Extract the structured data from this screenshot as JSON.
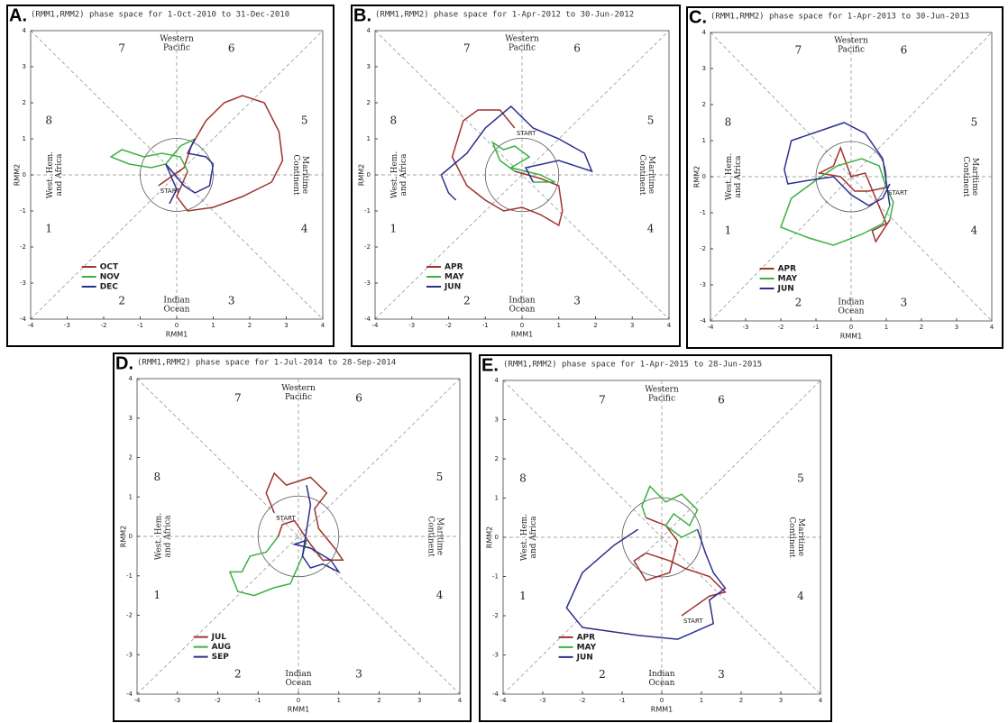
{
  "chart_data": [
    {
      "type": "line",
      "panel_label": "A.",
      "title": "(RMM1,RMM2) phase space for  1-Oct-2010 to 31-Dec-2010",
      "xlabel": "RMM1",
      "ylabel": "RMM2",
      "xlim": [
        -4,
        4
      ],
      "ylim": [
        -4,
        4
      ],
      "xticks": [
        -4,
        -3,
        -2,
        -1,
        0,
        1,
        2,
        3,
        4
      ],
      "yticks": [
        -4,
        -3,
        -2,
        -1,
        0,
        1,
        2,
        3,
        4
      ],
      "phase_labels": [
        "1",
        "2",
        "3",
        "4",
        "5",
        "6",
        "7",
        "8"
      ],
      "regions": {
        "top": [
          "Western",
          "Pacific"
        ],
        "bottom": [
          "Indian",
          "Ocean"
        ],
        "left": [
          "West. Hem.",
          "and Africa"
        ],
        "right": [
          "Maritime",
          "Continent"
        ]
      },
      "start_label": "START",
      "series": [
        {
          "name": "OCT",
          "color": "#a0322d",
          "x": [
            -0.5,
            0.2,
            0.4,
            0.8,
            1.3,
            1.8,
            2.4,
            2.8,
            2.9,
            2.6,
            1.8,
            1.0,
            0.3,
            0.0,
            0.3
          ],
          "y": [
            -0.3,
            0.2,
            0.8,
            1.5,
            2.0,
            2.2,
            2.0,
            1.2,
            0.4,
            -0.2,
            -0.6,
            -0.9,
            -1.0,
            -0.6,
            0.1
          ]
        },
        {
          "name": "NOV",
          "color": "#3cb043",
          "x": [
            0.3,
            0.1,
            -0.4,
            -0.9,
            -1.5,
            -1.8,
            -1.3,
            -0.7,
            -0.3,
            0.1,
            0.5
          ],
          "y": [
            0.1,
            0.5,
            0.6,
            0.5,
            0.7,
            0.5,
            0.3,
            0.2,
            0.3,
            0.8,
            1.0
          ]
        },
        {
          "name": "DEC",
          "color": "#2b2f8f",
          "x": [
            0.5,
            0.3,
            0.8,
            1.0,
            0.9,
            0.5,
            0.2,
            -0.3,
            0.0,
            -0.2
          ],
          "y": [
            1.0,
            0.6,
            0.5,
            0.3,
            -0.3,
            -0.5,
            -0.3,
            0.3,
            -0.4,
            -0.8
          ]
        }
      ]
    },
    {
      "type": "line",
      "panel_label": "B.",
      "title": "(RMM1,RMM2) phase space for  1-Apr-2012 to 30-Jun-2012",
      "xlabel": "RMM1",
      "ylabel": "RMM2",
      "xlim": [
        -4,
        4
      ],
      "ylim": [
        -4,
        4
      ],
      "xticks": [
        -4,
        -3,
        -2,
        -1,
        0,
        1,
        2,
        3,
        4
      ],
      "yticks": [
        -4,
        -3,
        -2,
        -1,
        0,
        1,
        2,
        3,
        4
      ],
      "phase_labels": [
        "1",
        "2",
        "3",
        "4",
        "5",
        "6",
        "7",
        "8"
      ],
      "regions": {
        "top": [
          "Western",
          "Pacific"
        ],
        "bottom": [
          "Indian",
          "Ocean"
        ],
        "left": [
          "West. Hem.",
          "and Africa"
        ],
        "right": [
          "Maritime",
          "Continent"
        ]
      },
      "start_label": "START",
      "series": [
        {
          "name": "APR",
          "color": "#a0322d",
          "x": [
            -0.2,
            -0.6,
            -1.2,
            -1.6,
            -1.9,
            -1.5,
            -1.0,
            -0.5,
            0.0,
            0.5,
            1.0,
            1.1,
            1.0,
            0.5,
            -0.2
          ],
          "y": [
            1.3,
            1.8,
            1.8,
            1.5,
            0.5,
            -0.3,
            -0.7,
            -1.0,
            -0.9,
            -1.1,
            -1.4,
            -1.0,
            -0.3,
            -0.1,
            0.1
          ]
        },
        {
          "name": "MAY",
          "color": "#3cb043",
          "x": [
            -0.2,
            -0.6,
            -0.8,
            -0.5,
            -0.2,
            0.2,
            -0.3,
            0.5,
            0.9,
            0.3
          ],
          "y": [
            0.1,
            0.4,
            0.9,
            0.7,
            0.8,
            0.5,
            0.2,
            0.0,
            -0.2,
            -0.2
          ]
        },
        {
          "name": "JUN",
          "color": "#2b2f8f",
          "x": [
            0.3,
            0.1,
            1.0,
            1.9,
            1.7,
            1.0,
            0.3,
            -0.3,
            -1.0,
            -1.5,
            -2.2,
            -2.0,
            -1.8
          ],
          "y": [
            -0.2,
            0.2,
            0.4,
            0.1,
            0.6,
            1.0,
            1.3,
            1.9,
            1.3,
            0.6,
            0.0,
            -0.5,
            -0.7
          ]
        }
      ]
    },
    {
      "type": "line",
      "panel_label": "C.",
      "title": "(RMM1,RMM2) phase space for  1-Apr-2013 to 30-Jun-2013",
      "xlabel": "RMM1",
      "ylabel": "RMM2",
      "xlim": [
        -4,
        4
      ],
      "ylim": [
        -4,
        4
      ],
      "xticks": [
        -4,
        -3,
        -2,
        -1,
        0,
        1,
        2,
        3,
        4
      ],
      "yticks": [
        -4,
        -3,
        -2,
        -1,
        0,
        1,
        2,
        3,
        4
      ],
      "phase_labels": [
        "1",
        "2",
        "3",
        "4",
        "5",
        "6",
        "7",
        "8"
      ],
      "regions": {
        "top": [
          "Western",
          "Pacific"
        ],
        "bottom": [
          "Indian",
          "Ocean"
        ],
        "left": [
          "West. Hem.",
          "and Africa"
        ],
        "right": [
          "Maritime",
          "Continent"
        ]
      },
      "start_label": "START",
      "series": [
        {
          "name": "APR",
          "color": "#a0322d",
          "x": [
            1.0,
            0.5,
            0.1,
            -0.3,
            -0.9,
            -0.5,
            -0.3,
            0.0,
            0.4,
            0.7,
            1.0,
            0.6,
            0.7,
            1.1
          ],
          "y": [
            -0.3,
            -0.4,
            -0.4,
            0.0,
            0.1,
            0.3,
            0.8,
            0.0,
            0.1,
            -0.6,
            -1.3,
            -1.5,
            -1.8,
            -1.2
          ]
        },
        {
          "name": "MAY",
          "color": "#3cb043",
          "x": [
            1.1,
            1.2,
            1.0,
            0.8,
            0.3,
            -0.4,
            -1.0,
            -1.7,
            -2.0,
            -1.2,
            -0.5,
            0.3,
            0.9,
            1.1
          ],
          "y": [
            -1.2,
            -0.7,
            -0.3,
            0.3,
            0.5,
            0.3,
            -0.1,
            -0.6,
            -1.4,
            -1.7,
            -1.9,
            -1.6,
            -1.3,
            -0.8
          ]
        },
        {
          "name": "JUN",
          "color": "#2b2f8f",
          "x": [
            1.1,
            0.9,
            0.4,
            -0.2,
            -0.8,
            -1.7,
            -1.9,
            -1.8,
            -1.2,
            -0.5,
            0.0,
            0.5,
            0.9,
            1.1
          ],
          "y": [
            -0.8,
            0.5,
            1.2,
            1.5,
            1.3,
            1.0,
            0.2,
            -0.2,
            -0.1,
            0.0,
            -0.5,
            -0.8,
            -0.6,
            -0.2
          ]
        }
      ]
    },
    {
      "type": "line",
      "panel_label": "D.",
      "title": "(RMM1,RMM2) phase space for  1-Jul-2014 to 28-Sep-2014",
      "xlabel": "RMM1",
      "ylabel": "RMM2",
      "xlim": [
        -4,
        4
      ],
      "ylim": [
        -4,
        4
      ],
      "xticks": [
        -4,
        -3,
        -2,
        -1,
        0,
        1,
        2,
        3,
        4
      ],
      "yticks": [
        -4,
        -3,
        -2,
        -1,
        0,
        1,
        2,
        3,
        4
      ],
      "phase_labels": [
        "1",
        "2",
        "3",
        "4",
        "5",
        "6",
        "7",
        "8"
      ],
      "regions": {
        "top": [
          "Western",
          "Pacific"
        ],
        "bottom": [
          "Indian",
          "Ocean"
        ],
        "left": [
          "West. Hem.",
          "and Africa"
        ],
        "right": [
          "Maritime",
          "Continent"
        ]
      },
      "start_label": "START",
      "series": [
        {
          "name": "JUL",
          "color": "#a0322d",
          "x": [
            -0.6,
            -0.8,
            -0.6,
            -0.3,
            0.3,
            0.7,
            0.4,
            0.5,
            0.9,
            1.1,
            0.6,
            0.3,
            -0.1,
            -0.4,
            -0.5
          ],
          "y": [
            0.6,
            1.1,
            1.6,
            1.3,
            1.5,
            1.1,
            0.7,
            0.2,
            -0.3,
            -0.6,
            -0.6,
            -0.2,
            0.4,
            0.3,
            0.0
          ]
        },
        {
          "name": "AUG",
          "color": "#3cb043",
          "x": [
            -0.5,
            -0.8,
            -1.2,
            -1.4,
            -1.7,
            -1.5,
            -1.1,
            -0.6,
            -0.2,
            0.1,
            0.2
          ],
          "y": [
            0.0,
            -0.4,
            -0.5,
            -0.9,
            -0.9,
            -1.4,
            -1.5,
            -1.3,
            -1.2,
            -0.5,
            -0.1
          ]
        },
        {
          "name": "SEP",
          "color": "#2b2f8f",
          "x": [
            0.2,
            -0.1,
            0.3,
            0.8,
            1.0,
            0.6,
            0.3,
            0.1,
            0.3,
            0.2
          ],
          "y": [
            -0.1,
            -0.2,
            -0.3,
            -0.6,
            -0.9,
            -0.7,
            -0.8,
            -0.5,
            0.8,
            1.3
          ]
        }
      ]
    },
    {
      "type": "line",
      "panel_label": "E.",
      "title": "(RMM1,RMM2) phase space for  1-Apr-2015 to 28-Jun-2015",
      "xlabel": "RMM1",
      "ylabel": "RMM2",
      "xlim": [
        -4,
        4
      ],
      "ylim": [
        -4,
        4
      ],
      "xticks": [
        -4,
        -3,
        -2,
        -1,
        0,
        1,
        2,
        3,
        4
      ],
      "yticks": [
        -4,
        -3,
        -2,
        -1,
        0,
        1,
        2,
        3,
        4
      ],
      "phase_labels": [
        "1",
        "2",
        "3",
        "4",
        "5",
        "6",
        "7",
        "8"
      ],
      "regions": {
        "top": [
          "Western",
          "Pacific"
        ],
        "bottom": [
          "Indian",
          "Ocean"
        ],
        "left": [
          "West. Hem.",
          "and Africa"
        ],
        "right": [
          "Maritime",
          "Continent"
        ]
      },
      "start_label": "START",
      "series": [
        {
          "name": "APR",
          "color": "#a0322d",
          "x": [
            0.5,
            1.2,
            1.6,
            1.2,
            0.6,
            0.2,
            -0.4,
            -0.7,
            -0.4,
            0.2,
            0.4,
            0.1,
            -0.4
          ],
          "y": [
            -2.0,
            -1.5,
            -1.4,
            -1.0,
            -0.8,
            -0.6,
            -0.4,
            -0.6,
            -1.1,
            -0.9,
            -0.1,
            0.3,
            0.5
          ]
        },
        {
          "name": "MAY",
          "color": "#3cb043",
          "x": [
            -0.4,
            -0.5,
            -0.3,
            0.1,
            0.5,
            0.9,
            0.7,
            0.3,
            0.1,
            0.5,
            0.9
          ],
          "y": [
            0.5,
            0.8,
            1.3,
            0.9,
            1.1,
            0.7,
            0.3,
            0.6,
            0.3,
            0.0,
            0.2
          ]
        },
        {
          "name": "JUN",
          "color": "#2b2f8f",
          "x": [
            0.9,
            1.1,
            1.3,
            1.6,
            1.2,
            1.3,
            0.4,
            -0.6,
            -1.3,
            -2.0,
            -2.4,
            -2.0,
            -1.2,
            -0.6
          ],
          "y": [
            0.2,
            -0.4,
            -0.9,
            -1.3,
            -1.6,
            -2.2,
            -2.6,
            -2.5,
            -2.4,
            -2.3,
            -1.8,
            -0.9,
            -0.2,
            0.2
          ]
        }
      ]
    }
  ]
}
